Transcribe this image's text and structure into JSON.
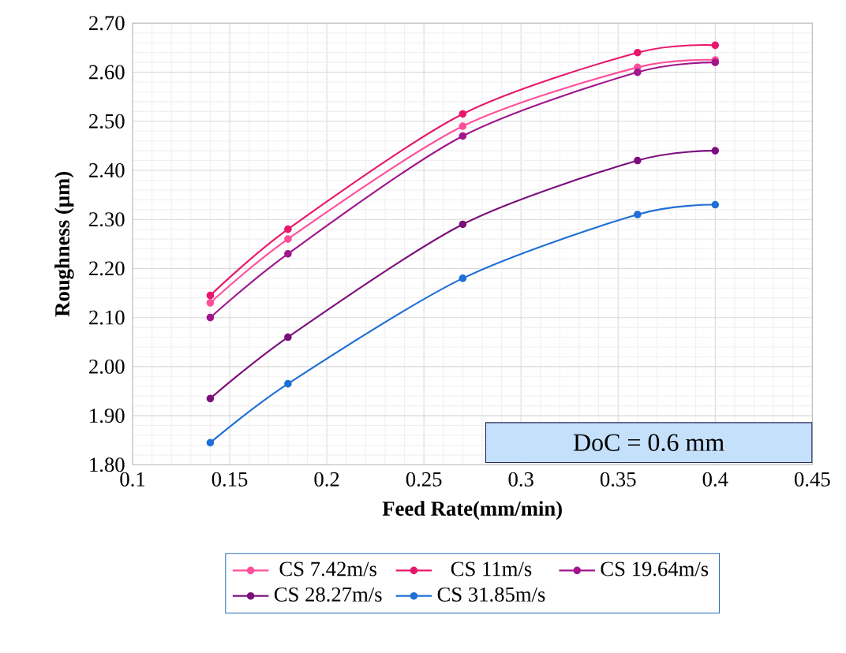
{
  "chart_data": {
    "type": "line",
    "xlabel": "Feed Rate(mm/min)",
    "ylabel": "Roughness (µm)",
    "x": [
      0.14,
      0.18,
      0.27,
      0.36,
      0.4
    ],
    "series": [
      {
        "name": "CS 7.42m/s",
        "color": "#ff4f9a",
        "values": [
          2.13,
          2.26,
          2.49,
          2.61,
          2.625
        ]
      },
      {
        "name": "CS 11m/s",
        "color": "#e8176b",
        "values": [
          2.145,
          2.28,
          2.515,
          2.64,
          2.655
        ]
      },
      {
        "name": "CS 19.64m/s",
        "color": "#a0168c",
        "values": [
          2.1,
          2.23,
          2.47,
          2.6,
          2.62
        ]
      },
      {
        "name": "CS 28.27m/s",
        "color": "#7b0f7b",
        "values": [
          1.935,
          2.06,
          2.29,
          2.42,
          2.44
        ]
      },
      {
        "name": "CS 31.85m/s",
        "color": "#1f6fd6",
        "values": [
          1.845,
          1.965,
          2.18,
          2.31,
          2.33
        ]
      }
    ],
    "xlim": [
      0.1,
      0.45
    ],
    "xticks": [
      0.1,
      0.15,
      0.2,
      0.25,
      0.3,
      0.35,
      0.4,
      0.45
    ],
    "ylim": [
      1.8,
      2.7
    ],
    "yticks": [
      {
        "value": 1.8,
        "label": "1.80"
      },
      {
        "value": 1.9,
        "label": "1.90"
      },
      {
        "value": 2.0,
        "label": "2.00"
      },
      {
        "value": 2.1,
        "label": "2.10"
      },
      {
        "value": 2.2,
        "label": "2.20"
      },
      {
        "value": 2.3,
        "label": "2.30"
      },
      {
        "value": 2.4,
        "label": "2.40"
      },
      {
        "value": 2.5,
        "label": "2.50"
      },
      {
        "value": 2.6,
        "label": "2.60"
      },
      {
        "value": 2.7,
        "label": "2.70"
      }
    ],
    "grid": true,
    "legend": "bottom",
    "marker": "circle",
    "line_style": "solid",
    "annotations": [
      "DoC = 0.6 mm"
    ]
  }
}
